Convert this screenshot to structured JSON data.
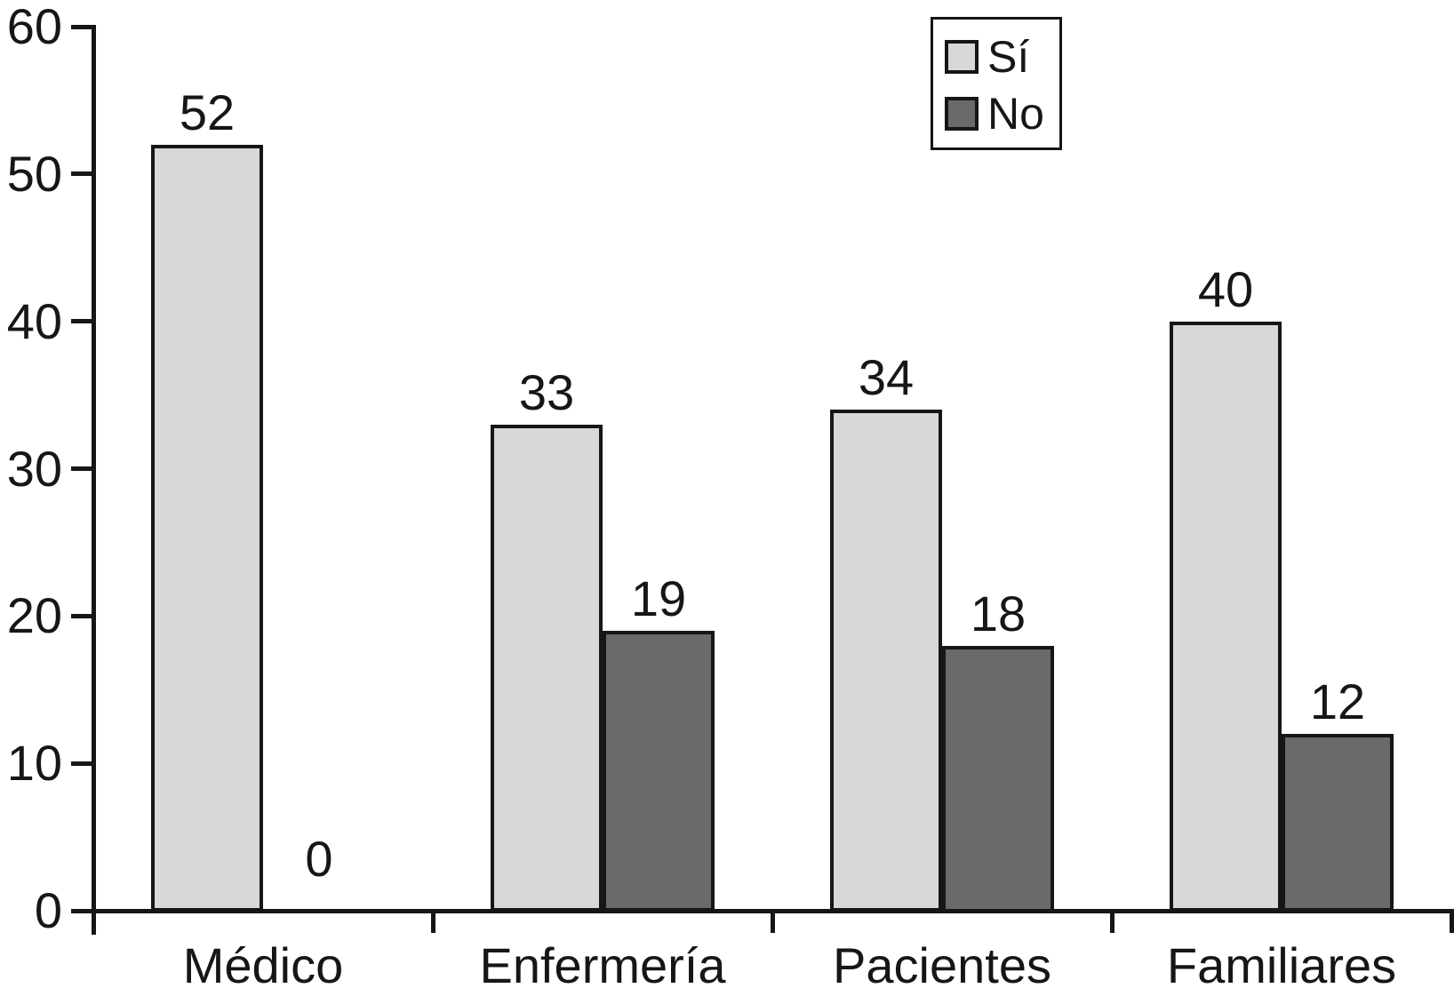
{
  "chart_data": {
    "type": "bar",
    "title": "",
    "xlabel": "",
    "ylabel": "",
    "categories": [
      "Médico",
      "Enfermería",
      "Pacientes",
      "Familiares"
    ],
    "series": [
      {
        "name": "Sí",
        "color": "#d8d8d8",
        "values": [
          52,
          33,
          34,
          40
        ]
      },
      {
        "name": "No",
        "color": "#6a6a6a",
        "values": [
          0,
          19,
          18,
          12
        ]
      }
    ],
    "bar_value_labels": [
      "52",
      "0",
      "33",
      "19",
      "34",
      "18",
      "40",
      "12"
    ],
    "ylim": [
      0,
      60
    ],
    "yticks": [
      0,
      10,
      20,
      30,
      40,
      50,
      60
    ],
    "grid": false,
    "legend_position": "top-right",
    "colors": {
      "axis": "#161616",
      "text": "#161616",
      "background": "#ffffff",
      "series_si": "#d8d8d8",
      "series_no": "#6a6a6a"
    }
  }
}
